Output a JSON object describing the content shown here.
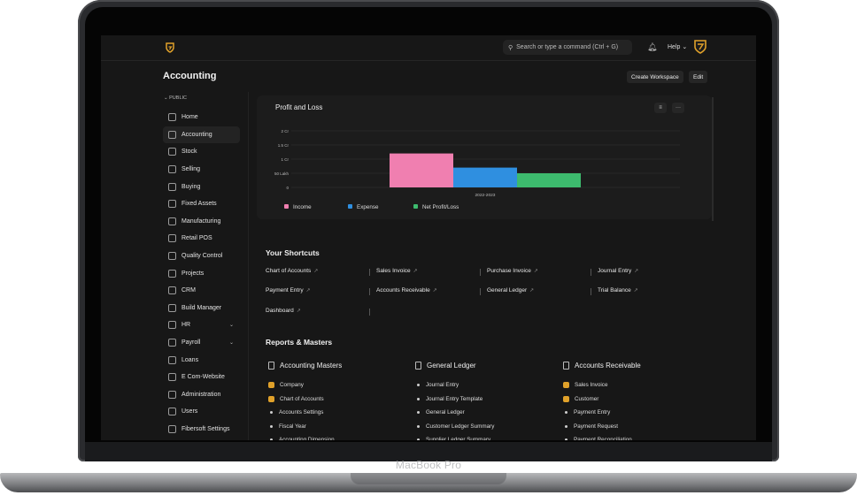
{
  "device": {
    "label": "MacBook Pro"
  },
  "navbar": {
    "search_placeholder": "Search or type a command (Ctrl + G)",
    "help_label": "Help"
  },
  "page": {
    "title": "Accounting"
  },
  "header_buttons": {
    "create_workspace": "Create Workspace",
    "edit": "Edit"
  },
  "sidebar": {
    "section_label": "PUBLIC",
    "items": [
      {
        "label": "Home"
      },
      {
        "label": "Accounting",
        "active": true
      },
      {
        "label": "Stock"
      },
      {
        "label": "Selling"
      },
      {
        "label": "Buying"
      },
      {
        "label": "Fixed Assets"
      },
      {
        "label": "Manufacturing"
      },
      {
        "label": "Retail POS"
      },
      {
        "label": "Quality Control"
      },
      {
        "label": "Projects"
      },
      {
        "label": "CRM"
      },
      {
        "label": "Build Manager"
      },
      {
        "label": "HR",
        "expandable": true
      },
      {
        "label": "Payroll",
        "expandable": true
      },
      {
        "label": "Loans"
      },
      {
        "label": "E Com-Website"
      },
      {
        "label": "Administration"
      },
      {
        "label": "Users"
      },
      {
        "label": "Fibersoft Settings"
      }
    ]
  },
  "chart_data": {
    "type": "bar",
    "title": "Profit and Loss",
    "categories": [
      "2022-2023"
    ],
    "yticks": [
      "0",
      "50 Lakh",
      "1 Cr",
      "1.5 Cr",
      "2 Cr"
    ],
    "ylim": [
      0,
      2
    ],
    "series": [
      {
        "name": "Income",
        "values": [
          1.2
        ],
        "color": "#f07fb0"
      },
      {
        "name": "Expense",
        "values": [
          0.7
        ],
        "color": "#2f8fe0"
      },
      {
        "name": "Net Profit/Loss",
        "values": [
          0.5
        ],
        "color": "#3dbb6e"
      }
    ],
    "grid": true,
    "legend": "bottom-left"
  },
  "shortcuts": {
    "title": "Your Shortcuts",
    "items": [
      "Chart of Accounts",
      "Sales Invoice",
      "Purchase Invoice",
      "Journal Entry",
      "Payment Entry",
      "Accounts Receivable",
      "General Ledger",
      "Trial Balance",
      "Dashboard"
    ]
  },
  "reports": {
    "title": "Reports & Masters",
    "columns": [
      {
        "title": "Accounting Masters",
        "items": [
          {
            "label": "Company",
            "badge": true
          },
          {
            "label": "Chart of Accounts",
            "badge": true
          },
          {
            "label": "Accounts Settings"
          },
          {
            "label": "Fiscal Year"
          },
          {
            "label": "Accounting Dimension"
          }
        ]
      },
      {
        "title": "General Ledger",
        "items": [
          {
            "label": "Journal Entry"
          },
          {
            "label": "Journal Entry Template"
          },
          {
            "label": "General Ledger"
          },
          {
            "label": "Customer Ledger Summary"
          },
          {
            "label": "Supplier Ledger Summary"
          }
        ]
      },
      {
        "title": "Accounts Receivable",
        "items": [
          {
            "label": "Sales Invoice",
            "badge": true
          },
          {
            "label": "Customer",
            "badge": true
          },
          {
            "label": "Payment Entry"
          },
          {
            "label": "Payment Request"
          },
          {
            "label": "Payment Reconciliation"
          }
        ]
      }
    ]
  }
}
